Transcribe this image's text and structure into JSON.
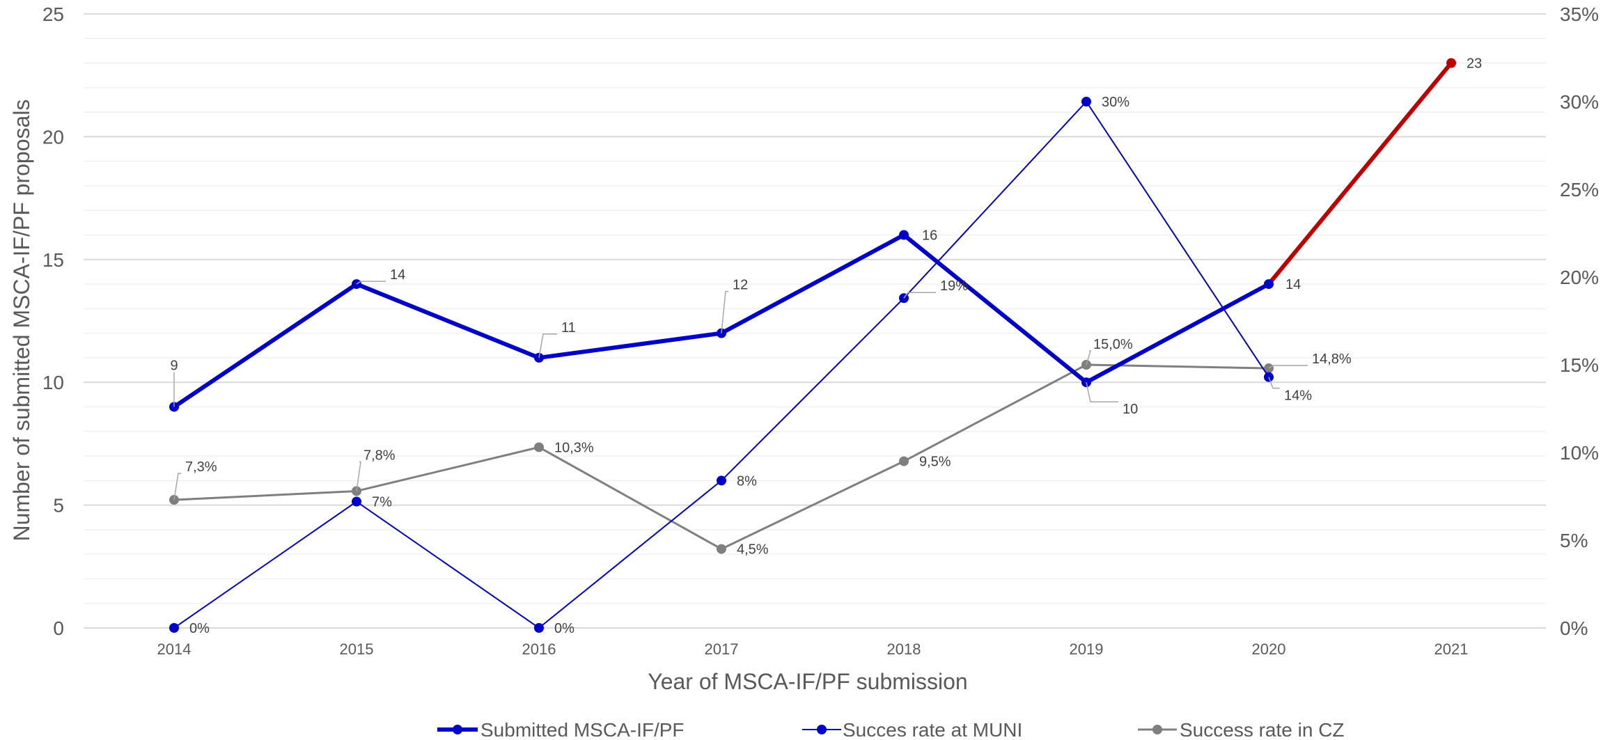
{
  "chart_data": {
    "type": "line",
    "title": "",
    "xlabel": "Year of MSCA-IF/PF submission",
    "ylabel": "Number of submitted MSCA-IF/PF proposals",
    "categories": [
      "2014",
      "2015",
      "2016",
      "2017",
      "2018",
      "2019",
      "2020",
      "2021"
    ],
    "ylim": [
      0,
      25
    ],
    "yticks": [
      "0",
      "5",
      "10",
      "15",
      "20",
      "25"
    ],
    "y2lim": [
      0,
      35
    ],
    "y2ticks": [
      "0%",
      "5%",
      "10%",
      "15%",
      "20%",
      "25%",
      "30%",
      "35%"
    ],
    "grid": true,
    "legend_position": "bottom",
    "series": [
      {
        "name": "Submitted MSCA-IF/PF",
        "axis": "left",
        "color": "#0000CC",
        "highlight_last_color": "#C00000",
        "values": [
          9,
          14,
          11,
          12,
          16,
          10,
          14,
          23
        ],
        "labels": [
          "9",
          "14",
          "11",
          "12",
          "16",
          "10",
          "14",
          "23"
        ]
      },
      {
        "name": "Succes rate at MUNI",
        "axis": "right",
        "color": "#0000CC",
        "values": [
          0,
          7.2,
          0,
          8.4,
          18.8,
          30,
          14.3,
          null
        ],
        "labels": [
          "0%",
          "7%",
          "0%",
          "8%",
          "19%",
          "30%",
          "14%",
          ""
        ]
      },
      {
        "name": "Success rate in CZ",
        "axis": "right",
        "color": "#7F7F7F",
        "values": [
          7.3,
          7.8,
          10.3,
          4.5,
          9.5,
          15.0,
          14.8,
          null
        ],
        "labels": [
          "7,3%",
          "7,8%",
          "10,3%",
          "4,5%",
          "9,5%",
          "15,0%",
          "14,8%",
          ""
        ]
      }
    ]
  }
}
